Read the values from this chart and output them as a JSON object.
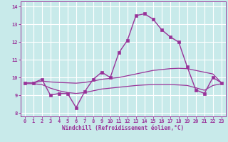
{
  "xlabel": "Windchill (Refroidissement éolien,°C)",
  "xlim": [
    -0.5,
    23.5
  ],
  "ylim": [
    7.8,
    14.3
  ],
  "yticks": [
    8,
    9,
    10,
    11,
    12,
    13,
    14
  ],
  "xticks": [
    0,
    1,
    2,
    3,
    4,
    5,
    6,
    7,
    8,
    9,
    10,
    11,
    12,
    13,
    14,
    15,
    16,
    17,
    18,
    19,
    20,
    21,
    22,
    23
  ],
  "background_color": "#c8eaea",
  "grid_color": "#ffffff",
  "line_color": "#993399",
  "series_main": {
    "x": [
      0,
      1,
      2,
      3,
      4,
      5,
      6,
      7,
      8,
      9,
      10,
      11,
      12,
      13,
      14,
      15,
      16,
      17,
      18,
      19,
      20,
      21,
      22,
      23
    ],
    "y": [
      9.7,
      9.7,
      9.9,
      9.0,
      9.1,
      9.1,
      8.3,
      9.2,
      9.9,
      10.3,
      10.0,
      11.4,
      12.1,
      13.5,
      13.6,
      13.3,
      12.7,
      12.3,
      12.0,
      10.6,
      9.3,
      9.1,
      10.0,
      9.7
    ]
  },
  "series_upper": {
    "x": [
      0,
      1,
      2,
      3,
      4,
      5,
      6,
      7,
      8,
      9,
      10,
      11,
      12,
      13,
      14,
      15,
      16,
      17,
      18,
      19,
      20,
      21,
      22,
      23
    ],
    "y": [
      9.7,
      9.7,
      9.8,
      9.75,
      9.72,
      9.7,
      9.68,
      9.72,
      9.8,
      9.9,
      9.95,
      10.0,
      10.1,
      10.2,
      10.3,
      10.4,
      10.45,
      10.5,
      10.52,
      10.5,
      10.4,
      10.3,
      10.2,
      9.7
    ]
  },
  "series_lower": {
    "x": [
      0,
      1,
      2,
      3,
      4,
      5,
      6,
      7,
      8,
      9,
      10,
      11,
      12,
      13,
      14,
      15,
      16,
      17,
      18,
      19,
      20,
      21,
      22,
      23
    ],
    "y": [
      9.65,
      9.65,
      9.6,
      9.4,
      9.25,
      9.15,
      9.1,
      9.15,
      9.25,
      9.35,
      9.4,
      9.45,
      9.5,
      9.55,
      9.58,
      9.6,
      9.6,
      9.6,
      9.58,
      9.55,
      9.42,
      9.28,
      9.55,
      9.65
    ]
  }
}
